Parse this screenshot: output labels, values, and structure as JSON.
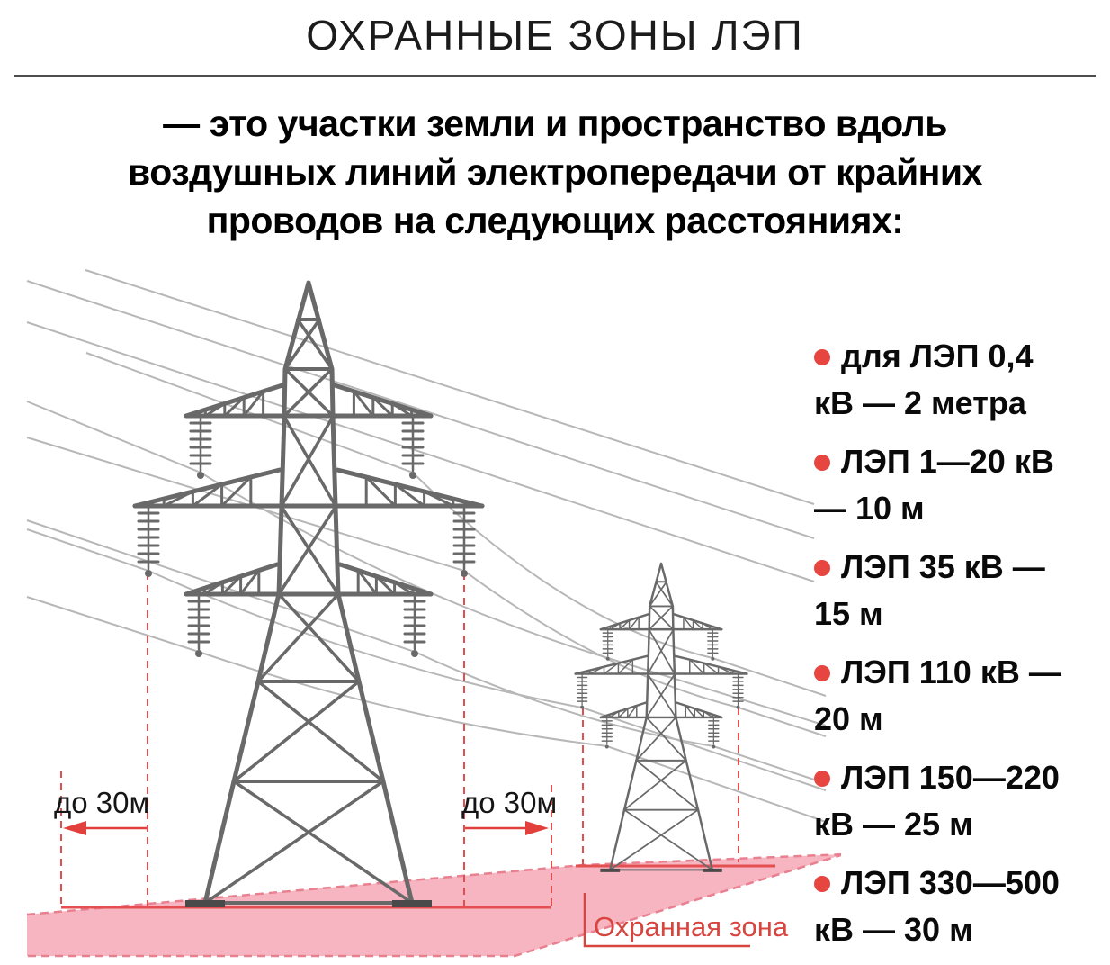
{
  "header": {
    "title": "ОХРАННЫЕ ЗОНЫ ЛЭП"
  },
  "intro": {
    "lines": [
      "— это участки земли и пространство вдоль",
      "воздушных линий электропередачи от крайних",
      "проводов на следующих расстояниях:"
    ]
  },
  "diagram": {
    "dimension_label_left": "до 30м",
    "dimension_label_right": "до 30м",
    "zone_label": "Охранная зона",
    "icons": [
      "transmission-tower-icon",
      "insulator-string-icon",
      "dimension-arrow-icon"
    ],
    "colors": {
      "tower_grey": "#696969",
      "wire_grey": "#b7b7b7",
      "accent_red": "#e2403c",
      "zone_fill": "#f7b4c1",
      "zone_border": "#e9808f",
      "zone_label_red": "#d8453f"
    }
  },
  "distance_list": {
    "bullet_color": "#e64540",
    "items": [
      {
        "lines": [
          "для ЛЭП  0,4",
          "кВ — 2 метра"
        ]
      },
      {
        "lines": [
          "ЛЭП  1—20 кВ",
          "— 10 м"
        ]
      },
      {
        "lines": [
          "ЛЭП  35 кВ —",
          "15 м"
        ]
      },
      {
        "lines": [
          "ЛЭП 110 кВ —",
          "20 м"
        ]
      },
      {
        "lines": [
          "ЛЭП 150—220",
          "кВ —  25 м"
        ]
      },
      {
        "lines": [
          "ЛЭП 330—500",
          "кВ — 30 м"
        ]
      }
    ]
  }
}
